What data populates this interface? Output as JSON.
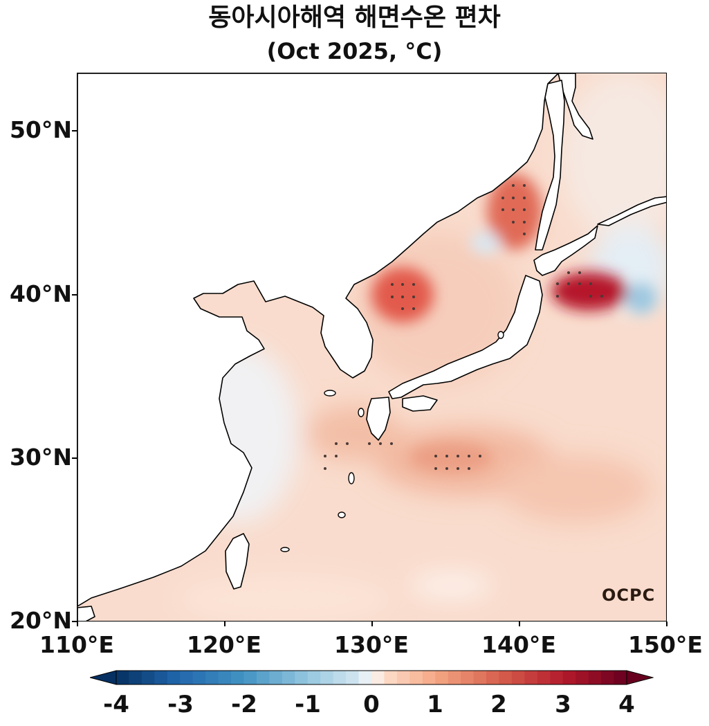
{
  "title": {
    "line1": "동아시아해역 해면수온 편차",
    "line2": "(Oct 2025, °C)"
  },
  "axes": {
    "lat_ticks": [
      "50°N",
      "40°N",
      "30°N",
      "20°N"
    ],
    "lon_ticks": [
      "110°E",
      "120°E",
      "130°E",
      "140°E",
      "150°E"
    ]
  },
  "map": {
    "extent_lon": [
      110,
      150
    ],
    "extent_lat": [
      20,
      53.5
    ],
    "variable": "sea surface temperature anomaly",
    "dots_indicate": "significance"
  },
  "colorbar": {
    "min": -4,
    "max": 4,
    "labels": [
      "-4",
      "-3",
      "-2",
      "-1",
      "0",
      "1",
      "2",
      "3",
      "4"
    ],
    "colormap": "RdBu_r",
    "cold_color": "#053061",
    "neutral_color": "#f7f7f7",
    "warm_color": "#67001f",
    "extend": "both"
  },
  "logo": {
    "text": "OCPC"
  }
}
